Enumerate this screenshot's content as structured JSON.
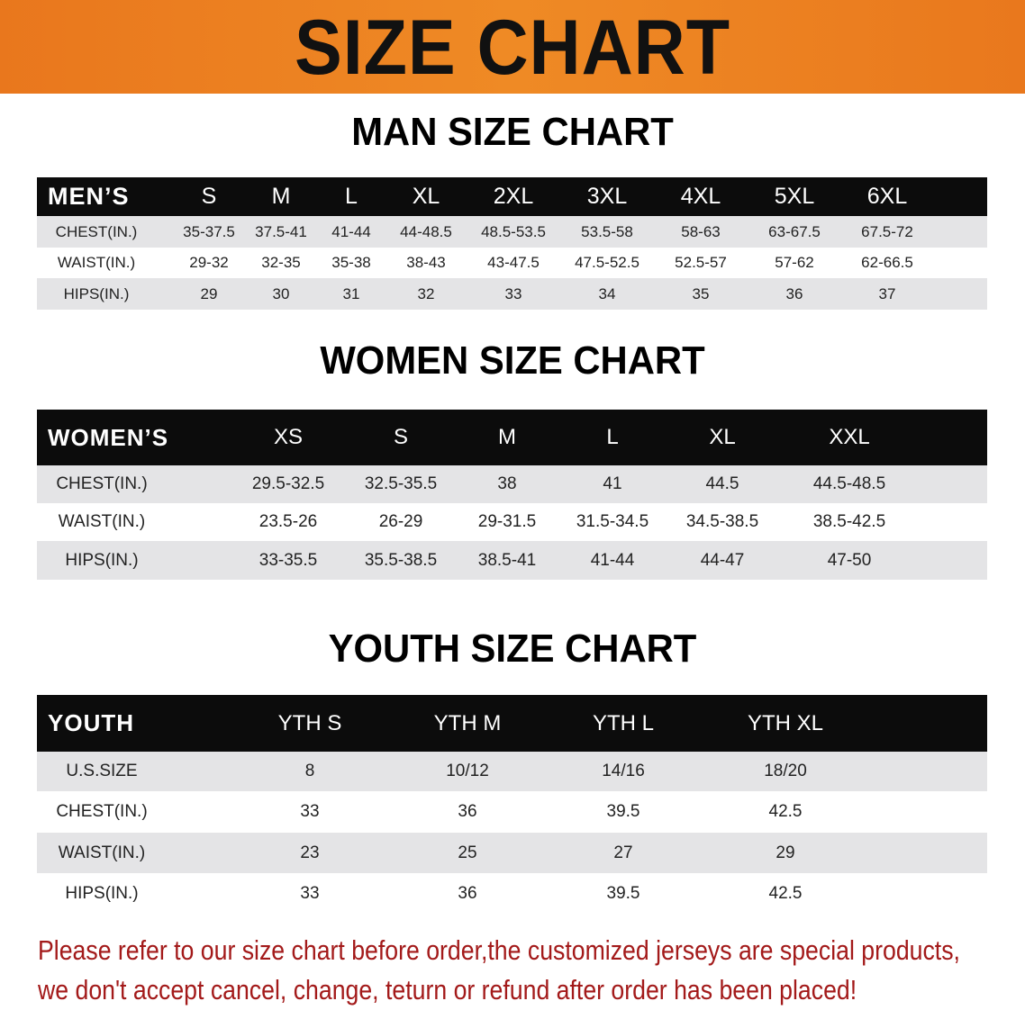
{
  "banner": {
    "title": "SIZE CHART"
  },
  "men": {
    "title": "MAN SIZE CHART",
    "header": [
      "MEN’S",
      "S",
      "M",
      "L",
      "XL",
      "2XL",
      "3XL",
      "4XL",
      "5XL",
      "6XL"
    ],
    "rows": [
      [
        "CHEST(IN.)",
        "35-37.5",
        "37.5-41",
        "41-44",
        "44-48.5",
        "48.5-53.5",
        "53.5-58",
        "58-63",
        "63-67.5",
        "67.5-72"
      ],
      [
        "WAIST(IN.)",
        "29-32",
        "32-35",
        "35-38",
        "38-43",
        "43-47.5",
        "47.5-52.5",
        "52.5-57",
        "57-62",
        "62-66.5"
      ],
      [
        "HIPS(IN.)",
        "29",
        "30",
        "31",
        "32",
        "33",
        "34",
        "35",
        "36",
        "37"
      ]
    ]
  },
  "women": {
    "title": "WOMEN SIZE CHART",
    "header": [
      "WOMEN’S",
      "XS",
      "S",
      "M",
      "L",
      "XL",
      "XXL"
    ],
    "rows": [
      [
        "CHEST(IN.)",
        "29.5-32.5",
        "32.5-35.5",
        "38",
        "41",
        "44.5",
        "44.5-48.5"
      ],
      [
        "WAIST(IN.)",
        "23.5-26",
        "26-29",
        "29-31.5",
        "31.5-34.5",
        "34.5-38.5",
        "38.5-42.5"
      ],
      [
        "HIPS(IN.)",
        "33-35.5",
        "35.5-38.5",
        "38.5-41",
        "41-44",
        "44-47",
        "47-50"
      ]
    ]
  },
  "youth": {
    "title": "YOUTH SIZE CHART",
    "header": [
      "YOUTH",
      "YTH S",
      "YTH M",
      "YTH L",
      "YTH XL"
    ],
    "rows": [
      [
        "U.S.SIZE",
        "8",
        "10/12",
        "14/16",
        "18/20"
      ],
      [
        "CHEST(IN.)",
        "33",
        "36",
        "39.5",
        "42.5"
      ],
      [
        "WAIST(IN.)",
        "23",
        "25",
        "27",
        "29"
      ],
      [
        "HIPS(IN.)",
        "33",
        "36",
        "39.5",
        "42.5"
      ]
    ]
  },
  "notice": {
    "line1": "Please refer to our size chart before order,the customized jerseys are special products,",
    "line2": "we don't accept cancel, change, teturn or refund after order has been placed!"
  },
  "colors": {
    "banner": "#ec8020",
    "header_bg": "#0c0c0c",
    "row_alt": "#e4e4e6",
    "notice": "#a31a1a"
  }
}
